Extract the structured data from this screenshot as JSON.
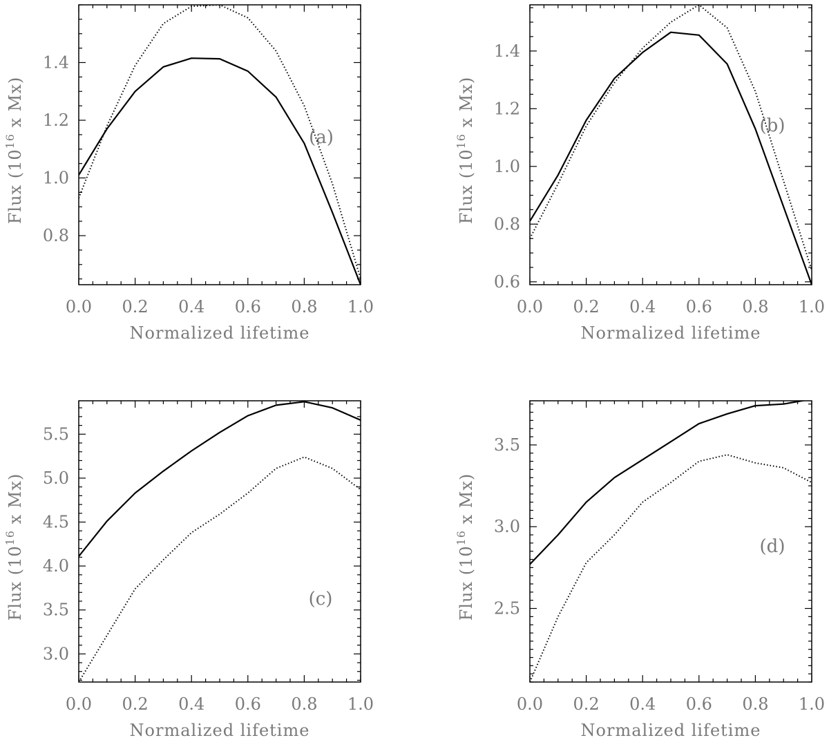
{
  "chart_data": [
    {
      "type": "line",
      "panel": "(a)",
      "xlabel": "Normalized lifetime",
      "ylabel": "Flux (10^16 x Mx)",
      "ylabel_parts": {
        "prefix": "Flux (10",
        "sup": "16",
        "suffix": " x Mx)"
      },
      "xlim": [
        0.0,
        1.0
      ],
      "ylim": [
        0.63,
        1.6
      ],
      "xticks": [
        "0.0",
        "0.2",
        "0.4",
        "0.6",
        "0.8",
        "1.0"
      ],
      "yticks": [
        0.8,
        1.0,
        1.2,
        1.4
      ],
      "ytick_labels": [
        "0.8",
        "1.0",
        "1.2",
        "1.4"
      ],
      "y_minor_step": 0.05,
      "x": [
        0.0,
        0.1,
        0.2,
        0.3,
        0.4,
        0.5,
        0.6,
        0.7,
        0.8,
        0.9,
        1.0
      ],
      "series": [
        {
          "style": "solid",
          "values": [
            1.01,
            1.17,
            1.3,
            1.385,
            1.415,
            1.413,
            1.37,
            1.28,
            1.12,
            0.88,
            0.63
          ]
        },
        {
          "style": "dotted",
          "values": [
            0.93,
            1.18,
            1.39,
            1.535,
            1.595,
            1.6,
            1.555,
            1.44,
            1.25,
            0.98,
            0.65
          ]
        }
      ]
    },
    {
      "type": "line",
      "panel": "(b)",
      "xlabel": "Normalized lifetime",
      "ylabel": "Flux (10^16 x Mx)",
      "ylabel_parts": {
        "prefix": "Flux (10",
        "sup": "16",
        "suffix": " x Mx)"
      },
      "xlim": [
        0.0,
        1.0
      ],
      "ylim": [
        0.59,
        1.56
      ],
      "xticks": [
        "0.0",
        "0.2",
        "0.4",
        "0.6",
        "0.8",
        "1.0"
      ],
      "yticks": [
        0.6,
        0.8,
        1.0,
        1.2,
        1.4
      ],
      "ytick_labels": [
        "0.6",
        "0.8",
        "1.0",
        "1.2",
        "1.4"
      ],
      "y_minor_step": 0.05,
      "x": [
        0.0,
        0.1,
        0.2,
        0.3,
        0.4,
        0.5,
        0.6,
        0.7,
        0.8,
        0.9,
        1.0
      ],
      "series": [
        {
          "style": "solid",
          "values": [
            0.81,
            0.97,
            1.16,
            1.305,
            1.395,
            1.465,
            1.455,
            1.355,
            1.13,
            0.86,
            0.59
          ]
        },
        {
          "style": "dotted",
          "values": [
            0.75,
            0.94,
            1.14,
            1.29,
            1.41,
            1.5,
            1.56,
            1.48,
            1.26,
            0.95,
            0.64
          ]
        }
      ]
    },
    {
      "type": "line",
      "panel": "(c)",
      "xlabel": "Normalized lifetime",
      "ylabel": "Flux (10^16 x Mx)",
      "ylabel_parts": {
        "prefix": "Flux (10",
        "sup": "16",
        "suffix": " x Mx)"
      },
      "xlim": [
        0.0,
        1.0
      ],
      "ylim": [
        2.68,
        5.88
      ],
      "xticks": [
        "0.0",
        "0.2",
        "0.4",
        "0.6",
        "0.8",
        "1.0"
      ],
      "yticks": [
        3.0,
        3.5,
        4.0,
        4.5,
        5.0,
        5.5
      ],
      "ytick_labels": [
        "3.0",
        "3.5",
        "4.0",
        "4.5",
        "5.0",
        "5.5"
      ],
      "y_minor_step": 0.1,
      "x": [
        0.0,
        0.1,
        0.2,
        0.3,
        0.4,
        0.5,
        0.6,
        0.7,
        0.8,
        0.9,
        1.0
      ],
      "series": [
        {
          "style": "solid",
          "values": [
            4.11,
            4.51,
            4.83,
            5.08,
            5.31,
            5.52,
            5.71,
            5.83,
            5.87,
            5.8,
            5.66
          ]
        },
        {
          "style": "dotted",
          "values": [
            2.68,
            3.21,
            3.74,
            4.07,
            4.38,
            4.59,
            4.83,
            5.11,
            5.24,
            5.11,
            4.87
          ]
        }
      ]
    },
    {
      "type": "line",
      "panel": "(d)",
      "xlabel": "Normalized lifetime",
      "ylabel": "Flux (10^16 x Mx)",
      "ylabel_parts": {
        "prefix": "Flux (10",
        "sup": "16",
        "suffix": " x Mx)"
      },
      "xlim": [
        0.0,
        1.0
      ],
      "ylim": [
        2.05,
        3.77
      ],
      "xticks": [
        "0.0",
        "0.2",
        "0.4",
        "0.6",
        "0.8",
        "1.0"
      ],
      "yticks": [
        2.5,
        3.0,
        3.5
      ],
      "ytick_labels": [
        "2.5",
        "3.0",
        "3.5"
      ],
      "y_minor_step": 0.05,
      "x": [
        0.0,
        0.1,
        0.2,
        0.3,
        0.4,
        0.5,
        0.6,
        0.7,
        0.8,
        0.9,
        1.0
      ],
      "series": [
        {
          "style": "solid",
          "values": [
            2.77,
            2.95,
            3.15,
            3.3,
            3.41,
            3.52,
            3.63,
            3.69,
            3.74,
            3.75,
            3.78
          ]
        },
        {
          "style": "dotted",
          "values": [
            2.05,
            2.45,
            2.78,
            2.95,
            3.15,
            3.27,
            3.4,
            3.44,
            3.39,
            3.36,
            3.27
          ]
        }
      ]
    }
  ]
}
